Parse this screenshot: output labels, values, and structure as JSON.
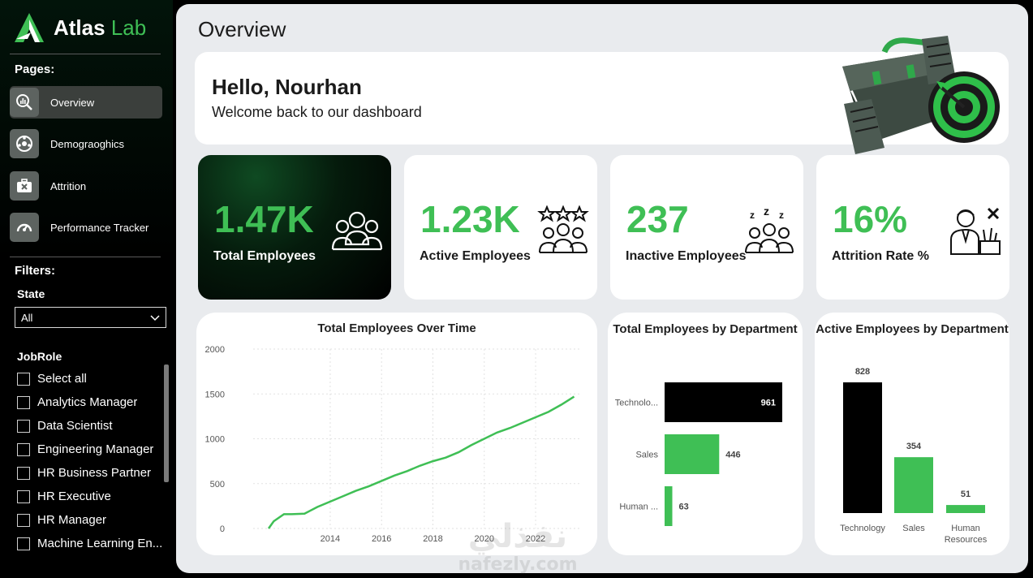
{
  "brand": {
    "name_part1": "Atlas",
    "name_part2": "Lab"
  },
  "sidebar": {
    "pages_heading": "Pages:",
    "pages": [
      {
        "label": "Overview",
        "icon": "magnifier-chart-icon",
        "active": true
      },
      {
        "label": "Demograoghics",
        "icon": "demographics-wheel-icon",
        "active": false
      },
      {
        "label": "Attrition",
        "icon": "briefcase-icon",
        "active": false
      },
      {
        "label": "Performance Tracker",
        "icon": "speedometer-icon",
        "active": false
      }
    ],
    "filters_heading": "Filters:",
    "state": {
      "label": "State",
      "value": "All"
    },
    "jobrole": {
      "label": "JobRole",
      "items": [
        "Select all",
        "Analytics Manager",
        "Data Scientist",
        "Engineering Manager",
        "HR Business Partner",
        "HR Executive",
        "HR Manager",
        "Machine Learning En..."
      ]
    }
  },
  "main": {
    "title": "Overview",
    "greeting": "Hello, Nourhan",
    "welcome": "Welcome back to our dashboard",
    "kpis": [
      {
        "value": "1.47K",
        "label": "Total Employees",
        "icon": "group-people-icon"
      },
      {
        "value": "1.23K",
        "label": "Active Employees",
        "icon": "stars-group-icon"
      },
      {
        "value": "237",
        "label": "Inactive Employees",
        "icon": "sleeping-group-icon"
      },
      {
        "value": "16%",
        "label": "Attrition Rate %",
        "icon": "leaving-employee-icon"
      }
    ]
  },
  "colors": {
    "accent": "#3fbf55",
    "dark_bar": "#000000",
    "panel": "#e9ebee"
  },
  "chart_data": [
    {
      "type": "line",
      "title": "Total Employees Over Time",
      "x": [
        2011.6,
        2011.8,
        2012.2,
        2012.5,
        2013.0,
        2013.5,
        2014.0,
        2014.5,
        2015.0,
        2015.5,
        2016.0,
        2016.5,
        2017.0,
        2017.5,
        2018.0,
        2018.5,
        2019.0,
        2019.5,
        2020.0,
        2020.5,
        2021.0,
        2021.5,
        2022.0,
        2022.5,
        2023.0,
        2023.5
      ],
      "y": [
        0,
        80,
        160,
        160,
        165,
        240,
        300,
        360,
        420,
        470,
        530,
        590,
        640,
        700,
        750,
        790,
        850,
        930,
        1000,
        1070,
        1120,
        1180,
        1240,
        1300,
        1380,
        1470
      ],
      "xticks": [
        "2014",
        "2016",
        "2018",
        "2020",
        "2022"
      ],
      "yticks": [
        "0",
        "500",
        "1000",
        "1500",
        "2000"
      ],
      "ylim": [
        0,
        2000
      ],
      "grid": true
    },
    {
      "type": "bar",
      "orientation": "horizontal",
      "title": "Total Employees by Department",
      "categories": [
        "Technolo...",
        "Sales",
        "Human ..."
      ],
      "values": [
        961,
        446,
        63
      ]
    },
    {
      "type": "bar",
      "orientation": "vertical",
      "title": "Active Employees by Department",
      "categories": [
        "Technology",
        "Sales",
        "Human Resources"
      ],
      "values": [
        828,
        354,
        51
      ]
    }
  ],
  "watermark": {
    "arabic": "نفذلي",
    "latin": "nafezly.com"
  }
}
